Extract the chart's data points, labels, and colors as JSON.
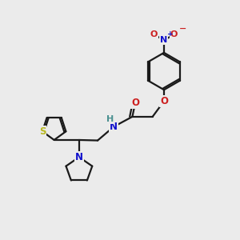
{
  "bg_color": "#ebebeb",
  "bond_color": "#1a1a1a",
  "bond_width": 1.6,
  "colors": {
    "N": "#1010cc",
    "O": "#cc2020",
    "S": "#b8b820",
    "H": "#4a9090",
    "C": "#1a1a1a"
  },
  "ring_r": 0.78,
  "th_r": 0.52
}
